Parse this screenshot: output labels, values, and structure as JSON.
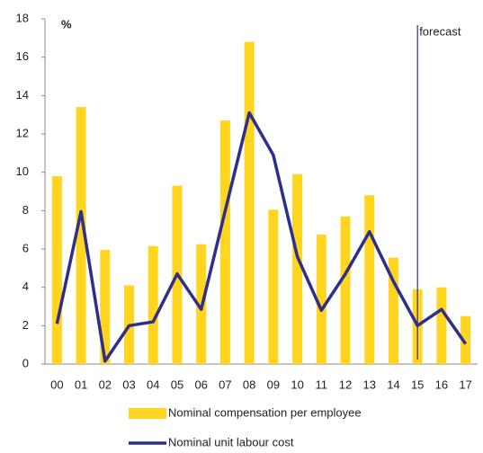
{
  "chart_data": {
    "type": "bar_line",
    "y_label": "%",
    "categories": [
      "00",
      "01",
      "02",
      "03",
      "04",
      "05",
      "06",
      "07",
      "08",
      "09",
      "10",
      "11",
      "12",
      "13",
      "14",
      "15",
      "16",
      "17"
    ],
    "series": [
      {
        "name": "Nominal compensation per employee",
        "type": "bar",
        "color": "#FFD520",
        "values": [
          9.8,
          13.4,
          5.95,
          4.1,
          6.15,
          9.3,
          6.25,
          12.7,
          16.8,
          8.05,
          9.9,
          6.75,
          7.7,
          8.8,
          5.55,
          3.9,
          4.0,
          2.5
        ]
      },
      {
        "name": "Nominal unit labour cost",
        "type": "line",
        "color": "#2E2E8C",
        "values": [
          2.1,
          7.95,
          0.15,
          2.0,
          2.2,
          4.7,
          2.85,
          8.0,
          13.1,
          10.9,
          5.6,
          2.8,
          4.7,
          6.9,
          4.3,
          2.0,
          2.85,
          1.05
        ]
      }
    ],
    "ylim": [
      0,
      18
    ],
    "yticks": [
      0,
      2,
      4,
      6,
      8,
      10,
      12,
      14,
      16,
      18
    ],
    "annotations": [
      {
        "text": "forecast",
        "x": "15"
      }
    ]
  }
}
